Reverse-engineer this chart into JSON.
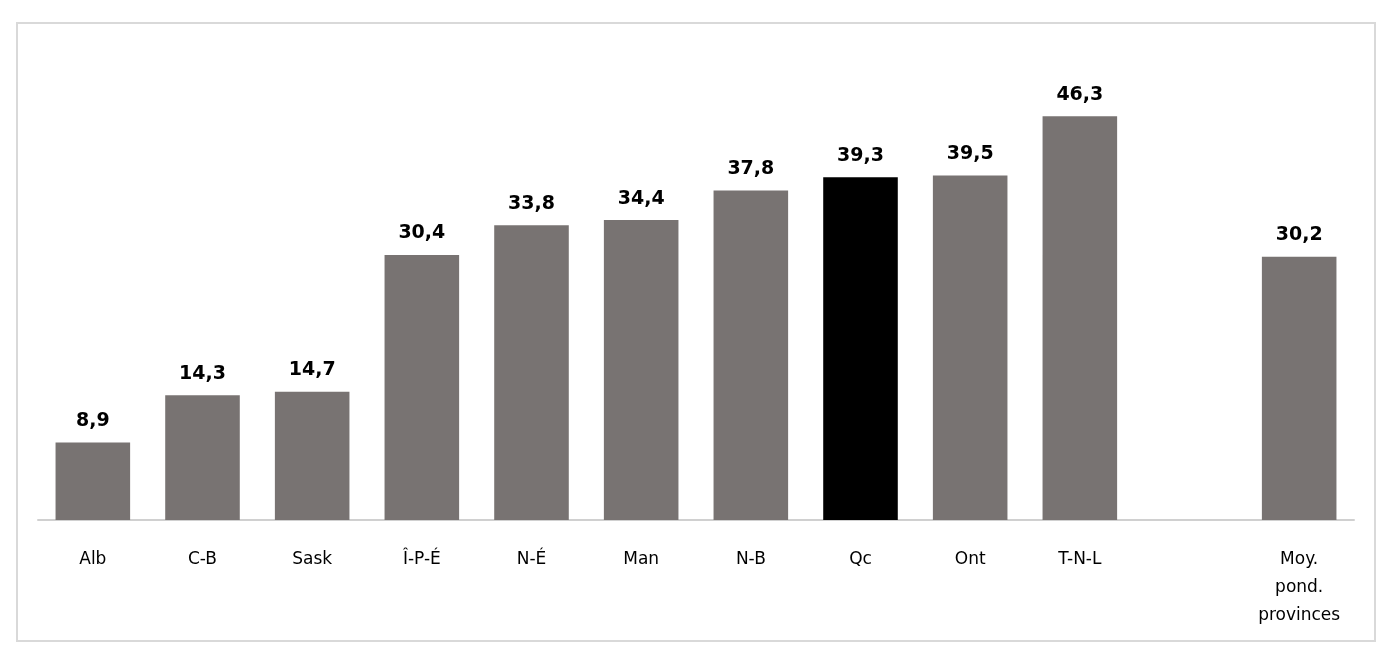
{
  "chart_data": {
    "type": "bar",
    "categories": [
      "Alb",
      "C-B",
      "Sask",
      "Î-P-É",
      "N-É",
      "Man",
      "N-B",
      "Qc",
      "Ont",
      "T-N-L",
      null,
      "Moy.\npond.\nprovinces"
    ],
    "values": [
      8.9,
      14.3,
      14.7,
      30.4,
      33.8,
      34.4,
      37.8,
      39.3,
      39.5,
      46.3,
      null,
      30.2
    ],
    "value_labels": [
      "8,9",
      "14,3",
      "14,7",
      "30,4",
      "33,8",
      "34,4",
      "37,8",
      "39,3",
      "39,5",
      "46,3",
      null,
      "30,2"
    ],
    "colors": [
      "#787372",
      "#787372",
      "#787372",
      "#787372",
      "#787372",
      "#787372",
      "#787372",
      "#000000",
      "#787372",
      "#787372",
      "#787372",
      "#787372"
    ],
    "grid": false,
    "tick_labels": "x"
  }
}
